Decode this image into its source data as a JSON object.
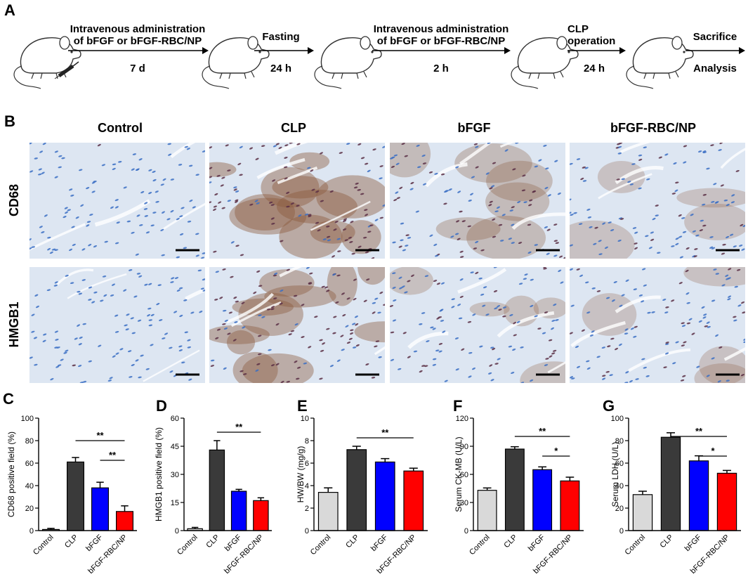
{
  "panel_a": {
    "letter": "A",
    "steps": [
      {
        "top": "Intravenous administration",
        "top2": "of bFGF or bFGF-RBC/NP",
        "bottom": "7 d"
      },
      {
        "top": "Fasting",
        "top2": "",
        "bottom": "24 h"
      },
      {
        "top": "Intravenous administration",
        "top2": "of bFGF or bFGF-RBC/NP",
        "bottom": "2 h"
      },
      {
        "top": "CLP",
        "top2": "operation",
        "bottom": "24 h"
      },
      {
        "top": "Sacrifice",
        "top2": "",
        "bottom": "Analysis"
      }
    ]
  },
  "panel_b": {
    "letter": "B",
    "columns": [
      "Control",
      "CLP",
      "bFGF",
      "bFGF-RBC/NP"
    ],
    "rows": [
      "CD68",
      "HMGB1"
    ],
    "stain_levels": [
      [
        0.02,
        0.8,
        0.45,
        0.3
      ],
      [
        0.02,
        0.75,
        0.35,
        0.3
      ]
    ]
  },
  "colors": {
    "control": "#d9d9d9",
    "clp": "#3a3a3a",
    "bfgf": "#0000ff",
    "bfgf_rbc_np": "#ff0000",
    "stain_blue": "#3b6fc4",
    "stain_brown": "#8b5a3c",
    "tissue_bg": "#dde6f2"
  },
  "chart_data": [
    {
      "letter": "C",
      "type": "bar",
      "categories": [
        "Control",
        "CLP",
        "bFGF",
        "bFGF-RBC/NP"
      ],
      "values": [
        1,
        61,
        38,
        17
      ],
      "errors": [
        1,
        4,
        5,
        5
      ],
      "ylabel": "CD68 positive field (%)",
      "ylim": [
        0,
        100
      ],
      "yticks": [
        0,
        20,
        40,
        60,
        80,
        100
      ],
      "significance": [
        {
          "from": 1,
          "to": 3,
          "label": "**"
        },
        {
          "from": 2,
          "to": 3,
          "label": "**"
        }
      ]
    },
    {
      "letter": "D",
      "type": "bar",
      "categories": [
        "Control",
        "CLP",
        "bFGF",
        "bFGF-RBC/NP"
      ],
      "values": [
        1,
        43,
        21,
        16
      ],
      "errors": [
        0.7,
        5,
        1,
        1.5
      ],
      "ylabel": "HMGB1 positive field (%)",
      "ylim": [
        0,
        60
      ],
      "yticks": [
        0,
        15,
        30,
        45,
        60
      ],
      "significance": [
        {
          "from": 1,
          "to": 3,
          "label": "**"
        }
      ]
    },
    {
      "letter": "E",
      "type": "bar",
      "categories": [
        "Control",
        "CLP",
        "bFGF",
        "bFGF-RBC/NP"
      ],
      "values": [
        3.4,
        7.2,
        6.1,
        5.3
      ],
      "errors": [
        0.4,
        0.3,
        0.3,
        0.25
      ],
      "ylabel": "HW/BW (mg/g)",
      "ylim": [
        0,
        10
      ],
      "yticks": [
        0,
        2,
        4,
        6,
        8,
        10
      ],
      "significance": [
        {
          "from": 1,
          "to": 3,
          "label": "**"
        }
      ]
    },
    {
      "letter": "F",
      "type": "bar",
      "categories": [
        "Control",
        "CLP",
        "bFGF",
        "bFGF-RBC/NP"
      ],
      "values": [
        43,
        87,
        65,
        53
      ],
      "errors": [
        2.5,
        2.5,
        3,
        4
      ],
      "ylabel": "Serum CK-MB (U/L)",
      "ylim": [
        0,
        120
      ],
      "yticks": [
        0,
        30,
        60,
        90,
        120
      ],
      "significance": [
        {
          "from": 1,
          "to": 3,
          "label": "**"
        },
        {
          "from": 2,
          "to": 3,
          "label": "*"
        }
      ]
    },
    {
      "letter": "G",
      "type": "bar",
      "categories": [
        "Control",
        "CLP",
        "bFGF",
        "bFGF-RBC/NP"
      ],
      "values": [
        32,
        83,
        62,
        51
      ],
      "errors": [
        3,
        4,
        4.5,
        2.5
      ],
      "ylabel": "Serum LDH (U/L)",
      "ylim": [
        0,
        100
      ],
      "yticks": [
        0,
        20,
        40,
        60,
        80,
        100
      ],
      "significance": [
        {
          "from": 1,
          "to": 3,
          "label": "**"
        },
        {
          "from": 2,
          "to": 3,
          "label": "*"
        }
      ]
    }
  ]
}
